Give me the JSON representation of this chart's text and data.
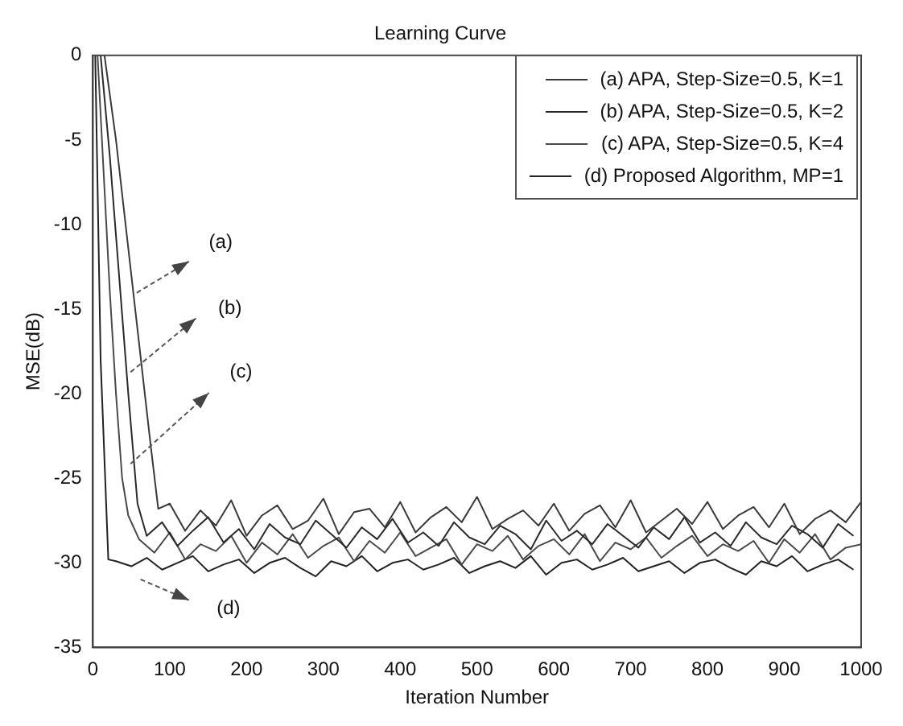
{
  "chart_data": {
    "type": "line",
    "title": "Learning Curve",
    "xlabel": "Iteration Number",
    "ylabel": "MSE(dB)",
    "xlim": [
      0,
      1000
    ],
    "xticks": [
      0,
      100,
      200,
      300,
      400,
      500,
      600,
      700,
      800,
      900,
      1000
    ],
    "ylim": [
      -35,
      0
    ],
    "yticks": [
      -35,
      -30,
      -25,
      -20,
      -15,
      -10,
      -5,
      0
    ],
    "grid": false,
    "legend": "top right",
    "marker": "none",
    "line_style": "solid",
    "annotations": [
      "(a)",
      "(b)",
      "(c)",
      "(d)"
    ],
    "series": [
      {
        "name": "(a) APA, Step-Size=0.5, K=1",
        "color": "#3a3a3a",
        "x": [
          15,
          30,
          45,
          60,
          75,
          85,
          100,
          120,
          140,
          160,
          180,
          200,
          220,
          240,
          260,
          280,
          300,
          320,
          340,
          360,
          380,
          400,
          420,
          440,
          460,
          480,
          500,
          520,
          540,
          560,
          580,
          600,
          620,
          640,
          660,
          680,
          700,
          720,
          740,
          760,
          780,
          800,
          820,
          840,
          860,
          880,
          900,
          920,
          940,
          960,
          980,
          1000
        ],
        "values": [
          0,
          -5,
          -11,
          -17,
          -23,
          -26.8,
          -26.5,
          -28.1,
          -26.9,
          -27.8,
          -26.3,
          -28.4,
          -27.2,
          -26.6,
          -28.0,
          -27.5,
          -26.2,
          -28.3,
          -27.0,
          -26.8,
          -27.9,
          -26.4,
          -28.2,
          -27.3,
          -26.7,
          -27.6,
          -26.1,
          -28.0,
          -27.4,
          -26.9,
          -27.8,
          -26.5,
          -28.1,
          -27.1,
          -26.6,
          -27.9,
          -26.3,
          -28.2,
          -27.5,
          -26.8,
          -27.7,
          -26.4,
          -28.0,
          -27.2,
          -26.7,
          -27.9,
          -26.5,
          -28.3,
          -27.4,
          -26.9,
          -27.6,
          -26.4
        ]
      },
      {
        "name": "(b) APA, Step-Size=0.5, K=2",
        "color": "#2a2a2a",
        "x": [
          10,
          22,
          34,
          46,
          58,
          70,
          90,
          110,
          130,
          150,
          170,
          190,
          210,
          230,
          250,
          270,
          290,
          310,
          330,
          350,
          370,
          390,
          410,
          430,
          450,
          470,
          490,
          510,
          530,
          550,
          570,
          590,
          610,
          630,
          650,
          670,
          690,
          710,
          730,
          750,
          770,
          790,
          810,
          830,
          850,
          870,
          890,
          910,
          930,
          950,
          970,
          990
        ],
        "values": [
          0,
          -6,
          -13,
          -20,
          -26.5,
          -28.4,
          -27.6,
          -29.0,
          -28.1,
          -27.3,
          -28.8,
          -28.0,
          -29.2,
          -27.7,
          -28.5,
          -28.9,
          -27.5,
          -28.3,
          -29.1,
          -27.9,
          -28.6,
          -27.4,
          -28.8,
          -28.2,
          -29.0,
          -27.6,
          -28.5,
          -28.9,
          -27.8,
          -28.3,
          -29.2,
          -27.5,
          -28.7,
          -28.1,
          -28.9,
          -27.7,
          -28.4,
          -29.1,
          -27.9,
          -28.6,
          -27.3,
          -28.8,
          -28.2,
          -29.0,
          -27.6,
          -28.5,
          -28.9,
          -27.8,
          -28.3,
          -29.1,
          -27.7,
          -28.4
        ]
      },
      {
        "name": "(c) APA, Step-Size=0.5, K=4",
        "color": "#4a4a4a",
        "x": [
          6,
          14,
          22,
          30,
          38,
          46,
          60,
          80,
          100,
          120,
          140,
          160,
          180,
          200,
          220,
          240,
          260,
          280,
          300,
          320,
          340,
          360,
          380,
          400,
          420,
          440,
          460,
          480,
          500,
          520,
          540,
          560,
          580,
          600,
          620,
          640,
          660,
          680,
          700,
          720,
          740,
          760,
          780,
          800,
          820,
          840,
          860,
          880,
          900,
          920,
          940,
          960,
          980,
          1000
        ],
        "values": [
          0,
          -7,
          -14,
          -20,
          -25,
          -27.2,
          -28.6,
          -29.4,
          -28.2,
          -29.8,
          -28.9,
          -29.3,
          -28.4,
          -30.0,
          -28.8,
          -29.5,
          -28.3,
          -29.7,
          -29.0,
          -28.5,
          -29.9,
          -28.7,
          -29.4,
          -28.2,
          -29.6,
          -29.1,
          -28.6,
          -30.1,
          -28.9,
          -29.3,
          -28.4,
          -29.8,
          -29.0,
          -28.6,
          -29.5,
          -28.3,
          -29.9,
          -28.8,
          -29.2,
          -28.5,
          -29.7,
          -29.0,
          -28.4,
          -29.6,
          -28.9,
          -29.3,
          -28.7,
          -30.0,
          -28.6,
          -29.4,
          -28.3,
          -29.8,
          -29.1,
          -28.9
        ]
      },
      {
        "name": "(d) Proposed Algorithm, MP=1",
        "color": "#222222",
        "x": [
          3,
          10,
          20,
          30,
          50,
          70,
          90,
          110,
          130,
          150,
          170,
          190,
          210,
          230,
          250,
          270,
          290,
          310,
          330,
          350,
          370,
          390,
          410,
          430,
          450,
          470,
          490,
          510,
          530,
          550,
          570,
          590,
          610,
          630,
          650,
          670,
          690,
          710,
          730,
          750,
          770,
          790,
          810,
          830,
          850,
          870,
          890,
          910,
          930,
          950,
          970,
          990
        ],
        "values": [
          0,
          -18,
          -29.8,
          -29.9,
          -30.2,
          -29.7,
          -30.4,
          -30.0,
          -29.6,
          -30.5,
          -30.1,
          -29.8,
          -30.6,
          -30.0,
          -29.7,
          -30.3,
          -30.8,
          -29.9,
          -30.2,
          -29.6,
          -30.5,
          -30.0,
          -29.8,
          -30.4,
          -30.1,
          -29.7,
          -30.6,
          -30.2,
          -29.9,
          -30.3,
          -29.6,
          -30.7,
          -30.0,
          -29.8,
          -30.4,
          -30.1,
          -29.7,
          -30.5,
          -30.2,
          -29.9,
          -30.6,
          -30.0,
          -29.8,
          -30.3,
          -30.7,
          -29.9,
          -30.2,
          -29.6,
          -30.5,
          -30.1,
          -29.8,
          -30.4
        ]
      }
    ]
  }
}
